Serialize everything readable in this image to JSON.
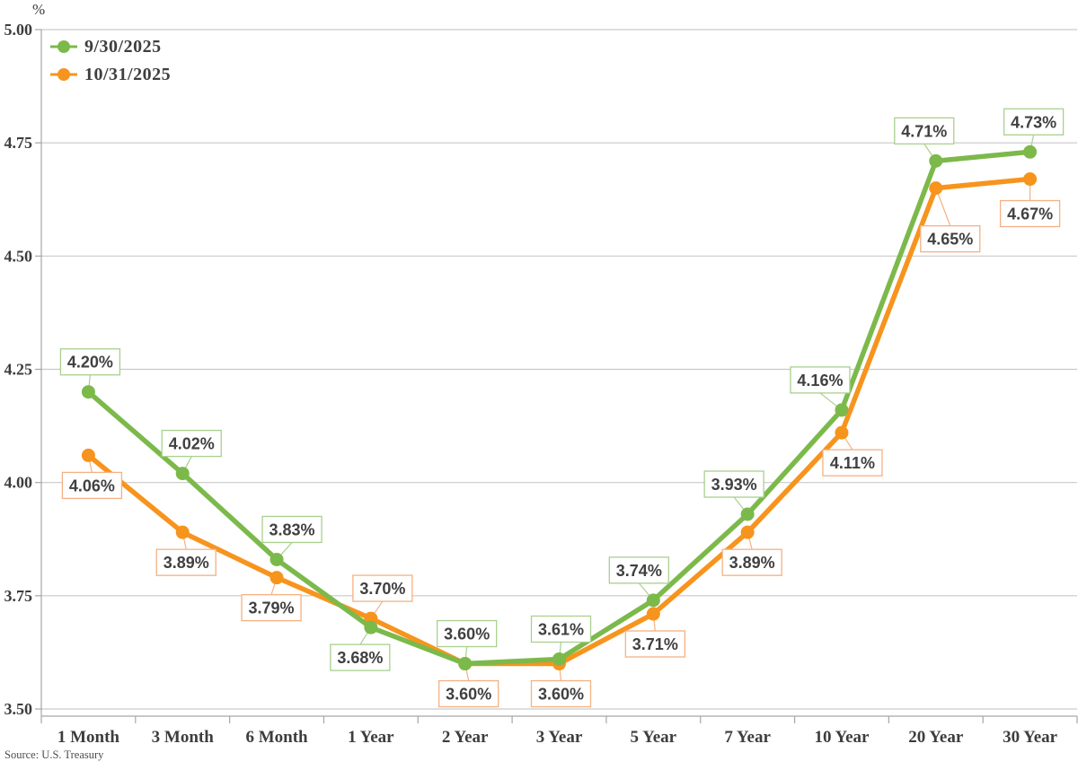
{
  "chart_data": {
    "type": "line",
    "title": "",
    "xlabel": "",
    "ylabel": "%",
    "ylim": [
      3.5,
      5.0
    ],
    "grid": true,
    "legend_position": "top-left",
    "source": "Source: U.S. Treasury",
    "categories": [
      "1 Month",
      "3 Month",
      "6 Month",
      "1 Year",
      "2 Year",
      "3 Year",
      "5 Year",
      "7 Year",
      "10 Year",
      "20 Year",
      "30 Year"
    ],
    "yticks": [
      "5.00",
      "4.75",
      "4.50",
      "4.25",
      "4.00",
      "3.75",
      "3.50"
    ],
    "colors": {
      "grid": "#c9c9c9",
      "axis": "#a6a6a6",
      "label_text": "#404040",
      "axis_text": "#3d3d3d",
      "green": "#7cb94b",
      "green_light": "#a9d08e",
      "orange": "#f7941d",
      "orange_light": "#f4b183"
    },
    "series": [
      {
        "name": "9/30/2025",
        "color": "#7cb94b",
        "label_border": "#a9d08e",
        "values": [
          4.2,
          4.02,
          3.83,
          3.68,
          3.6,
          3.61,
          3.74,
          3.93,
          4.16,
          4.71,
          4.73
        ],
        "labels": [
          "4.20%",
          "4.02%",
          "3.83%",
          "3.68%",
          "3.60%",
          "3.61%",
          "3.74%",
          "3.93%",
          "4.16%",
          "4.71%",
          "4.73%"
        ],
        "label_layout": [
          {
            "pos": "above",
            "dx": 2
          },
          {
            "pos": "above",
            "dx": 10
          },
          {
            "pos": "above",
            "dx": 17
          },
          {
            "pos": "below",
            "dx": -12
          },
          {
            "pos": "above",
            "dx": 2
          },
          {
            "pos": "above",
            "dx": 2
          },
          {
            "pos": "above",
            "dx": -16
          },
          {
            "pos": "above",
            "dx": -15
          },
          {
            "pos": "above",
            "dx": -24
          },
          {
            "pos": "above",
            "dx": -13
          },
          {
            "pos": "above",
            "dx": 4
          }
        ]
      },
      {
        "name": "10/31/2025",
        "color": "#f7941d",
        "label_border": "#f4b183",
        "values": [
          4.06,
          3.89,
          3.79,
          3.7,
          3.6,
          3.6,
          3.71,
          3.89,
          4.11,
          4.65,
          4.67
        ],
        "labels": [
          "4.06%",
          "3.89%",
          "3.79%",
          "3.70%",
          "3.60%",
          "3.60%",
          "3.71%",
          "3.89%",
          "4.11%",
          "4.65%",
          "4.67%"
        ],
        "label_layout": [
          {
            "pos": "below",
            "dx": 4
          },
          {
            "pos": "below",
            "dx": 4
          },
          {
            "pos": "below",
            "dx": -6
          },
          {
            "pos": "above",
            "dx": 13
          },
          {
            "pos": "below",
            "dx": 4
          },
          {
            "pos": "below",
            "dx": 2
          },
          {
            "pos": "below",
            "dx": 2
          },
          {
            "pos": "below",
            "dx": 5
          },
          {
            "pos": "below",
            "dx": 12
          },
          {
            "pos": "below",
            "dx": 16,
            "gap": 42
          },
          {
            "pos": "below",
            "dx": 0,
            "gap": 24
          }
        ]
      }
    ]
  }
}
